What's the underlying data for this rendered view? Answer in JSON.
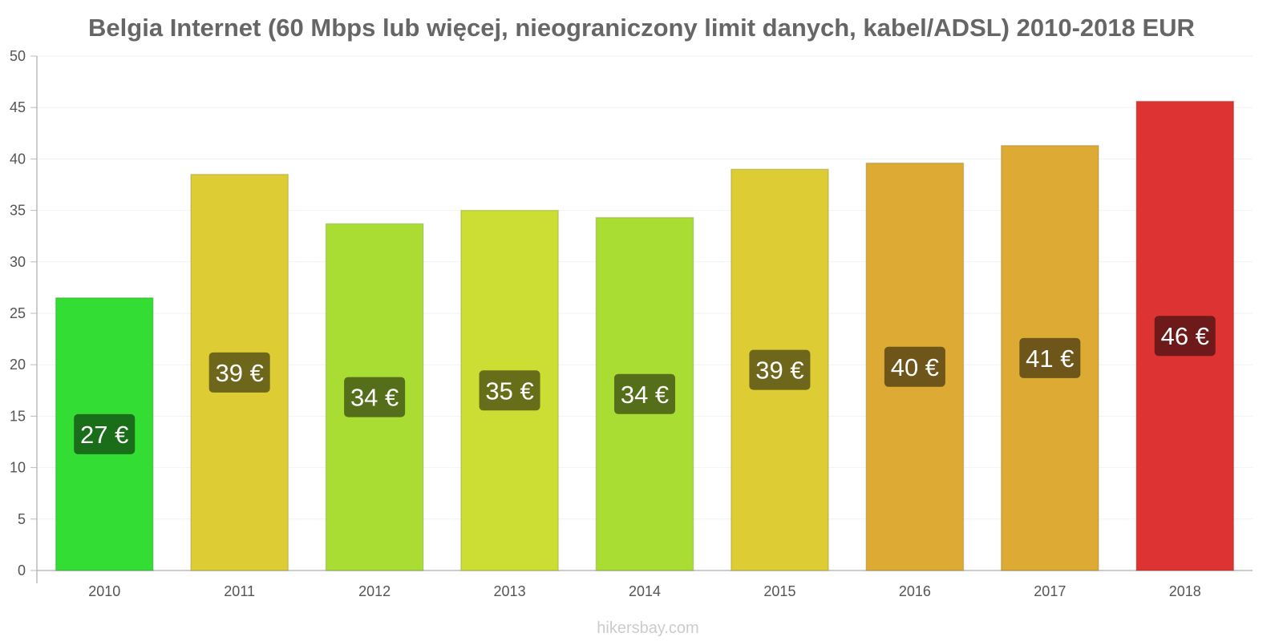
{
  "chart_data": {
    "type": "bar",
    "title": "Belgia Internet (60 Mbps lub więcej, nieograniczony limit danych, kabel/ADSL) 2010-2018 EUR",
    "xlabel": "",
    "ylabel": "",
    "ylim": [
      0,
      50
    ],
    "yticks": [
      0,
      5,
      10,
      15,
      20,
      25,
      30,
      35,
      40,
      45,
      50
    ],
    "grid": true,
    "categories": [
      "2010",
      "2011",
      "2012",
      "2013",
      "2014",
      "2015",
      "2016",
      "2017",
      "2018"
    ],
    "values": [
      26.5,
      38.5,
      33.7,
      35.0,
      34.3,
      39.0,
      39.6,
      41.3,
      45.6
    ],
    "data_labels": [
      "27 €",
      "39 €",
      "34 €",
      "35 €",
      "34 €",
      "39 €",
      "40 €",
      "41 €",
      "46 €"
    ],
    "bar_colors": [
      "#33dd33",
      "#ddcc33",
      "#aadd33",
      "#ccdd33",
      "#aadd33",
      "#ddcc33",
      "#ddaa33",
      "#ddaa33",
      "#dd3333"
    ],
    "label_colors": [
      "#1a6e1a",
      "#6e661a",
      "#556e1a",
      "#666e1a",
      "#556e1a",
      "#6e661a",
      "#6e551a",
      "#6e551a",
      "#6e1a1a"
    ]
  },
  "watermark": "hikersbay.com"
}
